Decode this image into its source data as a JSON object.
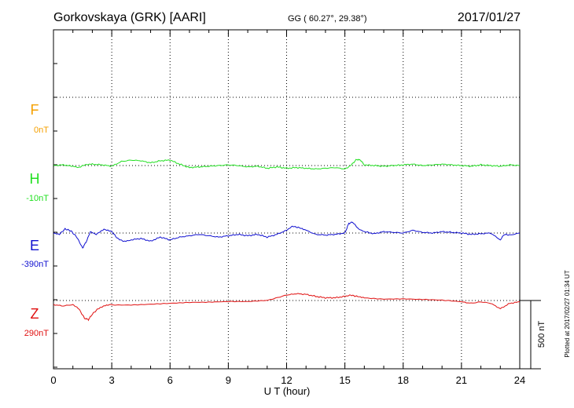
{
  "header": {
    "station": "Gorkovskaya (GRK)  [AARI]",
    "coords": "GG ( 60.27°,  29.38°)",
    "date": "2017/01/27"
  },
  "footer_note": "Plotted at 2017/02/27 01:34 UT",
  "chart_data": {
    "type": "line",
    "title": "Gorkovskaya (GRK)  [AARI]",
    "xlabel": "U T (hour)",
    "xlim": [
      0,
      24
    ],
    "x_ticks": [
      0,
      3,
      6,
      9,
      12,
      15,
      18,
      21,
      24
    ],
    "x_tick_labels": [
      "0",
      "3",
      "6",
      "9",
      "12",
      "15",
      "18",
      "21",
      "24"
    ],
    "grid": true,
    "scale_bar_label": "500 nT",
    "scale_bar_nT": 500,
    "series": [
      {
        "name": "F",
        "baseline_label": "0nT",
        "color": "#f5a000",
        "values": []
      },
      {
        "name": "H",
        "baseline_label": "-10nT",
        "color": "#22e022",
        "x": [
          0,
          0.5,
          1,
          1.3,
          1.6,
          2,
          2.5,
          3,
          3.5,
          4,
          4.5,
          5,
          5.5,
          6,
          6.5,
          7,
          7.5,
          8,
          8.5,
          9,
          9.5,
          10,
          10.5,
          11,
          11.5,
          12,
          12.5,
          13,
          13.5,
          14,
          14.5,
          15,
          15.2,
          15.4,
          15.6,
          15.8,
          16,
          16.5,
          17,
          17.5,
          18,
          18.5,
          19,
          19.5,
          20,
          20.5,
          21,
          21.5,
          22,
          22.5,
          23,
          23.5,
          24
        ],
        "values": [
          0,
          5,
          -5,
          -15,
          5,
          10,
          5,
          -5,
          30,
          40,
          35,
          20,
          35,
          40,
          10,
          -15,
          -10,
          -5,
          0,
          5,
          0,
          -10,
          -5,
          -20,
          -10,
          -20,
          -15,
          -20,
          -25,
          -20,
          -15,
          -25,
          -10,
          15,
          45,
          40,
          5,
          0,
          -5,
          0,
          5,
          10,
          0,
          5,
          10,
          5,
          0,
          -5,
          5,
          0,
          -5,
          5,
          0
        ]
      },
      {
        "name": "E",
        "baseline_label": "-390nT",
        "color": "#1010d0",
        "x": [
          0,
          0.3,
          0.6,
          0.9,
          1.2,
          1.5,
          1.7,
          1.9,
          2.2,
          2.6,
          3,
          3.3,
          3.6,
          4,
          4.5,
          5,
          5.5,
          6,
          6.5,
          7,
          7.5,
          8,
          8.5,
          9,
          9.5,
          10,
          10.5,
          11,
          11.5,
          12,
          12.3,
          12.6,
          13,
          13.5,
          14,
          14.5,
          15,
          15.2,
          15.4,
          15.7,
          16,
          16.5,
          17,
          17.5,
          18,
          18.5,
          19,
          19.5,
          20,
          20.5,
          21,
          21.5,
          22,
          22.5,
          23,
          23.2,
          23.5,
          24
        ],
        "values": [
          0,
          -10,
          30,
          15,
          -30,
          -110,
          -60,
          10,
          -10,
          25,
          10,
          -40,
          -60,
          -50,
          -40,
          -60,
          -30,
          -50,
          -30,
          -20,
          -10,
          -20,
          -30,
          -20,
          -10,
          -20,
          -10,
          -30,
          -10,
          20,
          50,
          40,
          20,
          -10,
          -15,
          -10,
          0,
          70,
          80,
          30,
          10,
          -5,
          10,
          5,
          0,
          20,
          5,
          0,
          10,
          5,
          0,
          -10,
          -5,
          0,
          -50,
          -10,
          -15,
          0
        ]
      },
      {
        "name": "Z",
        "baseline_label": "290nT",
        "color": "#e01010",
        "x": [
          0,
          0.5,
          1,
          1.3,
          1.6,
          1.8,
          2,
          2.3,
          2.6,
          3,
          4,
          5,
          6,
          7,
          8,
          9,
          10,
          11,
          11.5,
          12,
          12.5,
          13,
          13.5,
          14,
          14.5,
          15,
          15.3,
          15.6,
          16,
          17,
          18,
          19,
          20,
          21,
          21.5,
          22,
          22.5,
          23,
          23.5,
          24
        ],
        "values": [
          -30,
          -40,
          -30,
          -60,
          -130,
          -140,
          -100,
          -60,
          -40,
          -30,
          -30,
          -25,
          -20,
          -15,
          -15,
          -10,
          -10,
          0,
          20,
          40,
          50,
          45,
          30,
          20,
          20,
          30,
          40,
          30,
          20,
          10,
          10,
          5,
          0,
          -10,
          -20,
          -10,
          -20,
          -60,
          -20,
          -10
        ]
      }
    ]
  }
}
